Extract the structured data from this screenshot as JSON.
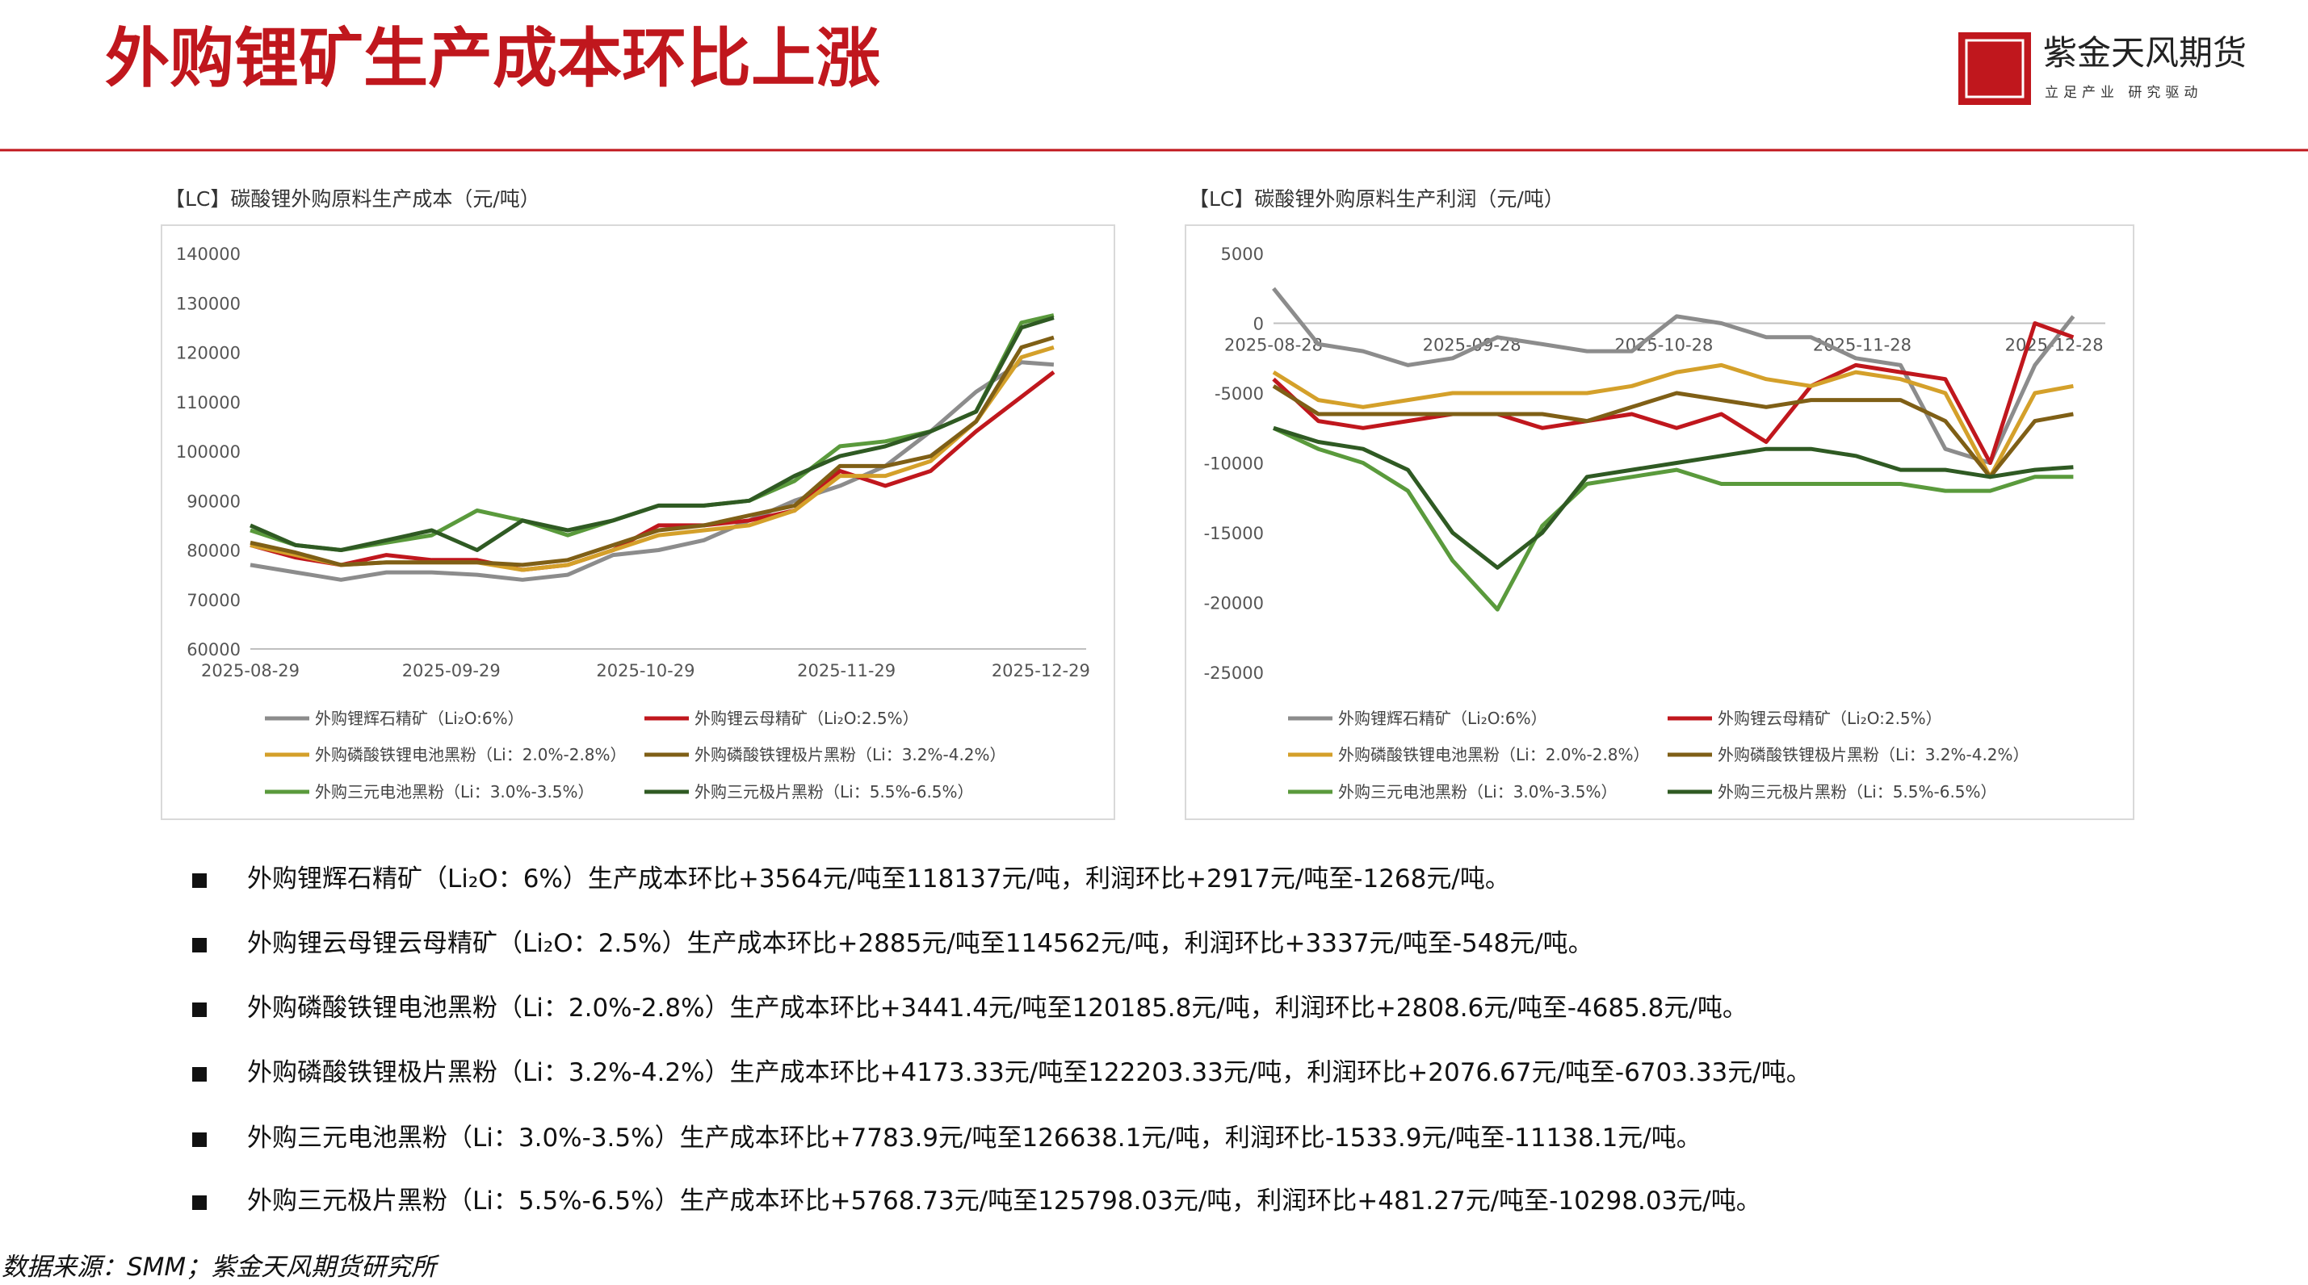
{
  "header": {
    "title": "外购锂矿生产成本环比上涨",
    "logo_name": "紫金天风期货",
    "logo_slogan": "立足产业 研究驱动"
  },
  "chart_data": [
    {
      "type": "line",
      "title": "【LC】碳酸锂外购原料生产成本（元/吨）",
      "x": [
        "2025-08-29",
        "2025-09-05",
        "2025-09-12",
        "2025-09-19",
        "2025-09-26",
        "2025-10-03",
        "2025-10-10",
        "2025-10-17",
        "2025-10-24",
        "2025-10-31",
        "2025-11-07",
        "2025-11-14",
        "2025-11-21",
        "2025-11-28",
        "2025-12-05",
        "2025-12-12",
        "2025-12-19",
        "2025-12-26",
        "2025-12-31"
      ],
      "xlim": [
        "2025-08-29",
        "2026-01-05"
      ],
      "xticks": [
        "2025-08-29",
        "2025-09-29",
        "2025-10-29",
        "2025-11-29",
        "2025-12-29"
      ],
      "ylim": [
        60000,
        140000
      ],
      "yticks": [
        60000,
        70000,
        80000,
        90000,
        100000,
        110000,
        120000,
        130000,
        140000
      ],
      "series": [
        {
          "name": "外购锂辉石精矿（Li₂O:6%）",
          "color": "#8c8c8c",
          "values": [
            77000,
            75500,
            74000,
            75500,
            75500,
            75000,
            74000,
            75000,
            79000,
            80000,
            82000,
            86000,
            90000,
            93000,
            97000,
            104000,
            112000,
            118000,
            117500
          ]
        },
        {
          "name": "外购锂云母精矿（Li₂O:2.5%）",
          "color": "#c0171d",
          "values": [
            81000,
            78500,
            77000,
            79000,
            78000,
            78000,
            76000,
            77000,
            80000,
            85000,
            85000,
            86000,
            88000,
            96000,
            93000,
            96000,
            104000,
            111000,
            116000
          ]
        },
        {
          "name": "外购磷酸铁锂电池黑粉（Li：2.0%-2.8%）",
          "color": "#d4a02a",
          "values": [
            81000,
            79000,
            77000,
            77500,
            77500,
            77500,
            76000,
            77000,
            80000,
            83000,
            84000,
            85000,
            88000,
            95000,
            95000,
            98000,
            106000,
            119000,
            121000
          ]
        },
        {
          "name": "外购磷酸铁锂极片黑粉（Li：3.2%-4.2%）",
          "color": "#7f5f16",
          "values": [
            81500,
            79500,
            77000,
            77500,
            77500,
            77500,
            77000,
            78000,
            81000,
            84000,
            85000,
            87000,
            89000,
            97000,
            97000,
            99000,
            106000,
            121000,
            123000
          ]
        },
        {
          "name": "外购三元电池黑粉（Li：3.0%-3.5%）",
          "color": "#5a9a3c",
          "values": [
            84000,
            81000,
            80000,
            81500,
            83000,
            88000,
            86000,
            83000,
            86000,
            89000,
            89000,
            90000,
            94000,
            101000,
            102000,
            104000,
            108000,
            126000,
            127500
          ]
        },
        {
          "name": "外购三元极片黑粉（Li：5.5%-6.5%）",
          "color": "#2f5a23",
          "values": [
            85000,
            81000,
            80000,
            82000,
            84000,
            80000,
            86000,
            84000,
            86000,
            89000,
            89000,
            90000,
            95000,
            99000,
            101000,
            104000,
            108000,
            125000,
            127000
          ]
        }
      ]
    },
    {
      "type": "line",
      "title": "【LC】碳酸锂外购原料生产利润（元/吨）",
      "x": [
        "2025-08-28",
        "2025-09-04",
        "2025-09-11",
        "2025-09-18",
        "2025-09-25",
        "2025-10-02",
        "2025-10-09",
        "2025-10-16",
        "2025-10-23",
        "2025-10-30",
        "2025-11-06",
        "2025-11-13",
        "2025-11-20",
        "2025-11-27",
        "2025-12-04",
        "2025-12-11",
        "2025-12-18",
        "2025-12-25",
        "2025-12-31"
      ],
      "xlim": [
        "2025-08-28",
        "2026-01-05"
      ],
      "xticks": [
        "2025-08-28",
        "2025-09-28",
        "2025-10-28",
        "2025-11-28",
        "2025-12-28"
      ],
      "ylim": [
        -25000,
        5000
      ],
      "yticks": [
        -25000,
        -20000,
        -15000,
        -10000,
        -5000,
        0,
        5000
      ],
      "series": [
        {
          "name": "外购锂辉石精矿（Li₂O:6%）",
          "color": "#8c8c8c",
          "values": [
            2500,
            -1500,
            -2000,
            -3000,
            -2500,
            -1000,
            -1500,
            -2000,
            -2000,
            500,
            0,
            -1000,
            -1000,
            -2500,
            -3000,
            -9000,
            -10000,
            -3000,
            500
          ]
        },
        {
          "name": "外购锂云母精矿（Li₂O:2.5%）",
          "color": "#c0171d",
          "values": [
            -4000,
            -7000,
            -7500,
            -7000,
            -6500,
            -6500,
            -7500,
            -7000,
            -6500,
            -7500,
            -6500,
            -8500,
            -4500,
            -3000,
            -3500,
            -4000,
            -10000,
            0,
            -1000
          ]
        },
        {
          "name": "外购磷酸铁锂电池黑粉（Li：2.0%-2.8%）",
          "color": "#d4a02a",
          "values": [
            -3500,
            -5500,
            -6000,
            -5500,
            -5000,
            -5000,
            -5000,
            -5000,
            -4500,
            -3500,
            -3000,
            -4000,
            -4500,
            -3500,
            -4000,
            -5000,
            -11000,
            -5000,
            -4500
          ]
        },
        {
          "name": "外购磷酸铁锂极片黑粉（Li：3.2%-4.2%）",
          "color": "#7f5f16",
          "values": [
            -4500,
            -6500,
            -6500,
            -6500,
            -6500,
            -6500,
            -6500,
            -7000,
            -6000,
            -5000,
            -5500,
            -6000,
            -5500,
            -5500,
            -5500,
            -7000,
            -11000,
            -7000,
            -6500
          ]
        },
        {
          "name": "外购三元电池黑粉（Li：3.0%-3.5%）",
          "color": "#5a9a3c",
          "values": [
            -7500,
            -9000,
            -10000,
            -12000,
            -17000,
            -20500,
            -14500,
            -11500,
            -11000,
            -10500,
            -11500,
            -11500,
            -11500,
            -11500,
            -11500,
            -12000,
            -12000,
            -11000,
            -11000
          ]
        },
        {
          "name": "外购三元极片黑粉（Li：5.5%-6.5%）",
          "color": "#2f5a23",
          "values": [
            -7500,
            -8500,
            -9000,
            -10500,
            -15000,
            -17500,
            -15000,
            -11000,
            -10500,
            -10000,
            -9500,
            -9000,
            -9000,
            -9500,
            -10500,
            -10500,
            -11000,
            -10500,
            -10300
          ]
        }
      ]
    }
  ],
  "bullets": [
    "外购锂辉石精矿（Li₂O：6%）生产成本环比+3564元/吨至118137元/吨，利润环比+2917元/吨至-1268元/吨。",
    "外购锂云母锂云母精矿（Li₂O：2.5%）生产成本环比+2885元/吨至114562元/吨，利润环比+3337元/吨至-548元/吨。",
    "外购磷酸铁锂电池黑粉（Li：2.0%-2.8%）生产成本环比+3441.4元/吨至120185.8元/吨，利润环比+2808.6元/吨至-4685.8元/吨。",
    "外购磷酸铁锂极片黑粉（Li：3.2%-4.2%）生产成本环比+4173.33元/吨至122203.33元/吨，利润环比+2076.67元/吨至-6703.33元/吨。",
    "外购三元电池黑粉（Li：3.0%-3.5%）生产成本环比+7783.9元/吨至126638.1元/吨，利润环比-1533.9元/吨至-11138.1元/吨。",
    "外购三元极片黑粉（Li：5.5%-6.5%）生产成本环比+5768.73元/吨至125798.03元/吨，利润环比+481.27元/吨至-10298.03元/吨。"
  ],
  "source": "数据来源：SMM；紫金天风期货研究所"
}
